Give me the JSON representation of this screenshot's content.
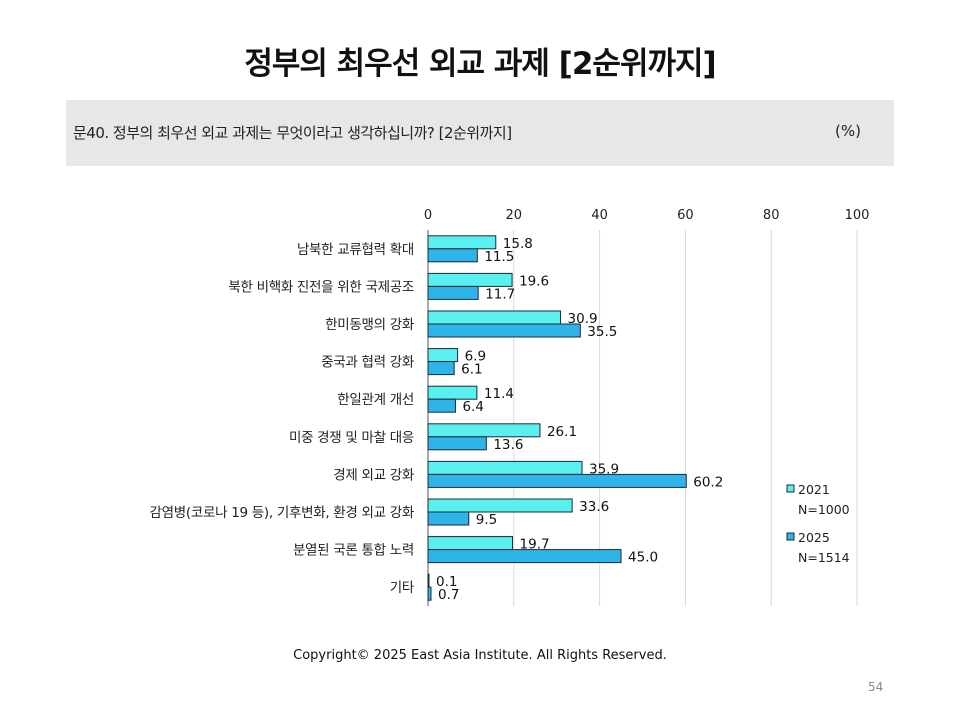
{
  "title": "정부의 최우선 외교 과제 [2순위까지]",
  "question": {
    "text": "문40. 정부의 최우선 외교 과제는 무엇이라고 생각하십니까? [2순위까지]",
    "unit": "(%)"
  },
  "chart_data": {
    "type": "bar",
    "orientation": "horizontal",
    "categories": [
      "남북한 교류협력 확대",
      "북한 비핵화 진전을 위한 국제공조",
      "한미동맹의 강화",
      "중국과 협력 강화",
      "한일관계 개선",
      "미중 경쟁 및 마찰 대응",
      "경제 외교 강화",
      "감염병(코로나 19 등), 기후변화, 환경 외교 강화",
      "분열된 국론 통합 노력",
      "기타"
    ],
    "series": [
      {
        "name": "2021",
        "sample": "N=1000",
        "color": "#5af0f0",
        "values": [
          15.8,
          19.6,
          30.9,
          6.9,
          11.4,
          26.1,
          35.9,
          33.6,
          19.7,
          0.1
        ],
        "labels": [
          "15.8",
          "19.6",
          "30.9",
          "6.9",
          "11.4",
          "26.1",
          "35.9",
          "33.6",
          "19.7",
          "0.1"
        ]
      },
      {
        "name": "2025",
        "sample": "N=1514",
        "color": "#2fb4ea",
        "values": [
          11.5,
          11.7,
          35.5,
          6.1,
          6.4,
          13.6,
          60.2,
          9.5,
          45.0,
          0.7
        ],
        "labels": [
          "11.5",
          "11.7",
          "35.5",
          "6.1",
          "6.4",
          "13.6",
          "60.2",
          "9.5",
          "45.0",
          "0.7"
        ]
      }
    ],
    "xlim": [
      0,
      100
    ],
    "xticks": [
      "0",
      "20",
      "40",
      "60",
      "80",
      "100"
    ],
    "grid": true,
    "legend_position": "right"
  },
  "footer": {
    "copyright": "Copyright© 2025 East Asia Institute. All Rights Reserved.",
    "page": "54"
  }
}
